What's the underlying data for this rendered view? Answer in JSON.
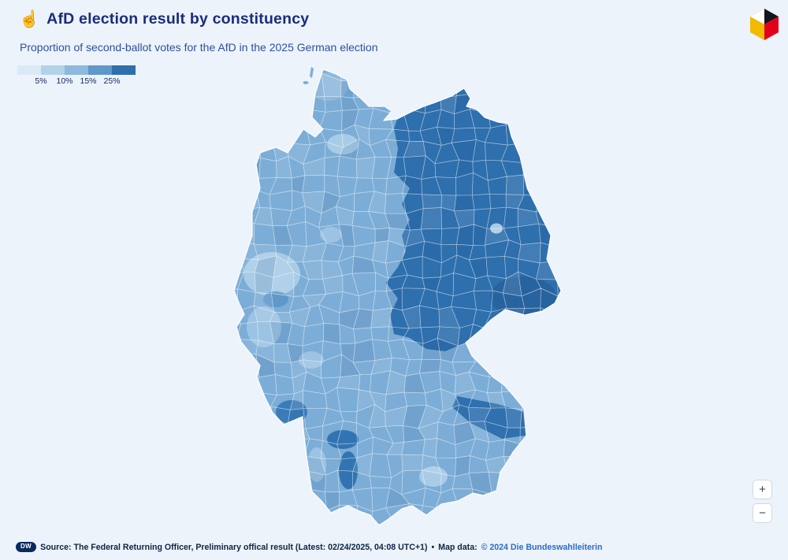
{
  "page": {
    "background_color": "#ecf3fa"
  },
  "header": {
    "interaction_icon": "pointing-hand",
    "title": "AfD election result by constituency",
    "subtitle": "Proportion of second-ballot votes for the AfD in the 2025 German election"
  },
  "legend": {
    "colors": [
      "#d9eaf6",
      "#b3d2ea",
      "#8cb9dd",
      "#5f98c9",
      "#2e6fad"
    ],
    "tick_labels": [
      "5%",
      "10%",
      "15%",
      "25%"
    ]
  },
  "chart_data": {
    "type": "choropleth-map",
    "title": "AfD election result by constituency",
    "subtitle": "Proportion of second-ballot votes for the AfD in the 2025 German election",
    "geography": "Germany, Bundestag constituencies",
    "measure": "AfD share of second-ballot votes, 2025 German federal election",
    "legend_breaks_percent": [
      5,
      10,
      15,
      25
    ],
    "color_scale": [
      "#d9eaf6",
      "#b3d2ea",
      "#8cb9dd",
      "#5f98c9",
      "#2e6fad"
    ],
    "legend_position": "top-left",
    "regions": [
      {
        "name": "Eastern Germany (Mecklenburg-Vorpommern, Brandenburg, Saxony-Anhalt, Thuringia, Saxony)",
        "value_band": "25%+",
        "color": "#2e6fad"
      },
      {
        "name": "Western Germany (typical constituency)",
        "value_band": "10-15%",
        "color": "#7cadd6"
      },
      {
        "name": "Lower Bavaria / Upper Palatinate, Palatinate, parts of Wuerttemberg",
        "value_band": "15-25%",
        "color": "#3274b2"
      },
      {
        "name": "Large western cities and Berlin (Hamburg, Cologne, Muenster, Munich, Freiburg)",
        "value_band": "5-10%",
        "color": "#a9cce6"
      }
    ]
  },
  "map": {
    "aria_label": "Choropleth map of Germany showing AfD second-ballot vote share by constituency; darkest blue in the east, lighter blue in the west and in large cities",
    "colors": {
      "west_base": "#7cadd6",
      "east": "#2e6fad",
      "east_deep": "#27639f",
      "light": "#a9cce6",
      "light_mid": "#9cc3e3",
      "north_light": "#8fb9dc",
      "dark_spot": "#3274b2",
      "dark_spot_2": "#3a7cb8",
      "lower_bavaria": "#2f70ae",
      "ruhr_mid": "#5f98c9",
      "border": "#ffffff"
    }
  },
  "zoom_controls": {
    "zoom_in": "+",
    "zoom_out": "−"
  },
  "footer": {
    "badge": "DW",
    "source_text": "Source: The Federal Returning Officer, Preliminary offical result (Latest: 02/24/2025, 04:08 UTC+1)",
    "separator": "•",
    "map_data_label": "Map data:",
    "map_data_link": "© 2024 Die Bundeswahlleiterin"
  },
  "branding": {
    "logo": "DW cube logo"
  }
}
